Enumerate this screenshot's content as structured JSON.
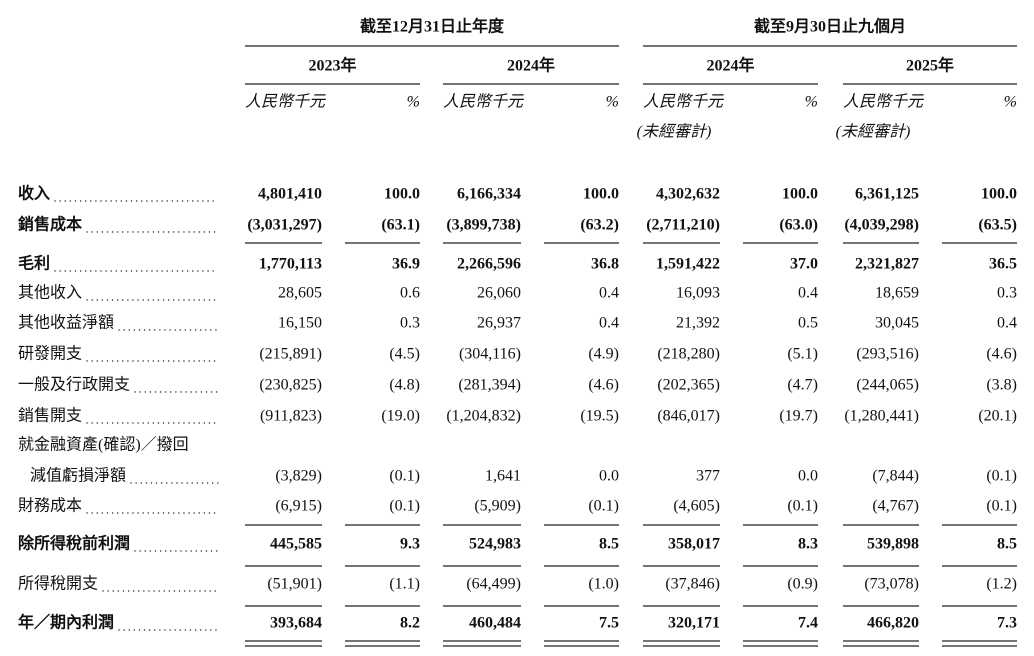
{
  "header": {
    "groups": [
      {
        "title": "截至12月31日止年度",
        "years": [
          {
            "year": "2023年",
            "units": [
              "人民幣千元",
              "%"
            ]
          },
          {
            "year": "2024年",
            "units": [
              "人民幣千元",
              "%"
            ]
          }
        ]
      },
      {
        "title": "截至9月30日止九個月",
        "years": [
          {
            "year": "2024年",
            "units": [
              "人民幣千元",
              "%"
            ],
            "note": "(未經審計)"
          },
          {
            "year": "2025年",
            "units": [
              "人民幣千元",
              "%"
            ],
            "note": "(未經審計)"
          }
        ]
      }
    ]
  },
  "table": {
    "rows": [
      {
        "label": [
          "收入"
        ],
        "bold": true,
        "values": [
          "4,801,410",
          "100.0",
          "6,166,334",
          "100.0",
          "4,302,632",
          "100.0",
          "6,361,125",
          "100.0"
        ]
      },
      {
        "label": [
          "銷售成本"
        ],
        "bold": true,
        "values": [
          "(3,031,297)",
          "(63.1)",
          "(3,899,738)",
          "(63.2)",
          "(2,711,210)",
          "(63.0)",
          "(4,039,298)",
          "(63.5)"
        ]
      },
      {
        "label": [
          "毛利"
        ],
        "bold": true,
        "values": [
          "1,770,113",
          "36.9",
          "2,266,596",
          "36.8",
          "1,591,422",
          "37.0",
          "2,321,827",
          "36.5"
        ]
      },
      {
        "label": [
          "其他收入"
        ],
        "bold": false,
        "values": [
          "28,605",
          "0.6",
          "26,060",
          "0.4",
          "16,093",
          "0.4",
          "18,659",
          "0.3"
        ]
      },
      {
        "label": [
          "其他收益淨額"
        ],
        "bold": false,
        "values": [
          "16,150",
          "0.3",
          "26,937",
          "0.4",
          "21,392",
          "0.5",
          "30,045",
          "0.4"
        ]
      },
      {
        "label": [
          "研發開支"
        ],
        "bold": false,
        "values": [
          "(215,891)",
          "(4.5)",
          "(304,116)",
          "(4.9)",
          "(218,280)",
          "(5.1)",
          "(293,516)",
          "(4.6)"
        ]
      },
      {
        "label": [
          "一般及行政開支"
        ],
        "bold": false,
        "values": [
          "(230,825)",
          "(4.8)",
          "(281,394)",
          "(4.6)",
          "(202,365)",
          "(4.7)",
          "(244,065)",
          "(3.8)"
        ]
      },
      {
        "label": [
          "銷售開支"
        ],
        "bold": false,
        "values": [
          "(911,823)",
          "(19.0)",
          "(1,204,832)",
          "(19.5)",
          "(846,017)",
          "(19.7)",
          "(1,280,441)",
          "(20.1)"
        ]
      },
      {
        "label": [
          "就金融資產(確認)／撥回",
          "減值虧損淨額"
        ],
        "bold": false,
        "values": [
          "(3,829)",
          "(0.1)",
          "1,641",
          "0.0",
          "377",
          "0.0",
          "(7,844)",
          "(0.1)"
        ]
      },
      {
        "label": [
          "財務成本"
        ],
        "bold": false,
        "values": [
          "(6,915)",
          "(0.1)",
          "(5,909)",
          "(0.1)",
          "(4,605)",
          "(0.1)",
          "(4,767)",
          "(0.1)"
        ]
      },
      {
        "label": [
          "除所得稅前利潤"
        ],
        "bold": true,
        "values": [
          "445,585",
          "9.3",
          "524,983",
          "8.5",
          "358,017",
          "8.3",
          "539,898",
          "8.5"
        ]
      },
      {
        "label": [
          "所得稅開支"
        ],
        "bold": false,
        "values": [
          "(51,901)",
          "(1.1)",
          "(64,499)",
          "(1.0)",
          "(37,846)",
          "(0.9)",
          "(73,078)",
          "(1.2)"
        ]
      },
      {
        "label": [
          "年／期內利潤"
        ],
        "bold": true,
        "values": [
          "393,684",
          "8.2",
          "460,484",
          "7.5",
          "320,171",
          "7.4",
          "466,820",
          "7.3"
        ]
      }
    ]
  }
}
